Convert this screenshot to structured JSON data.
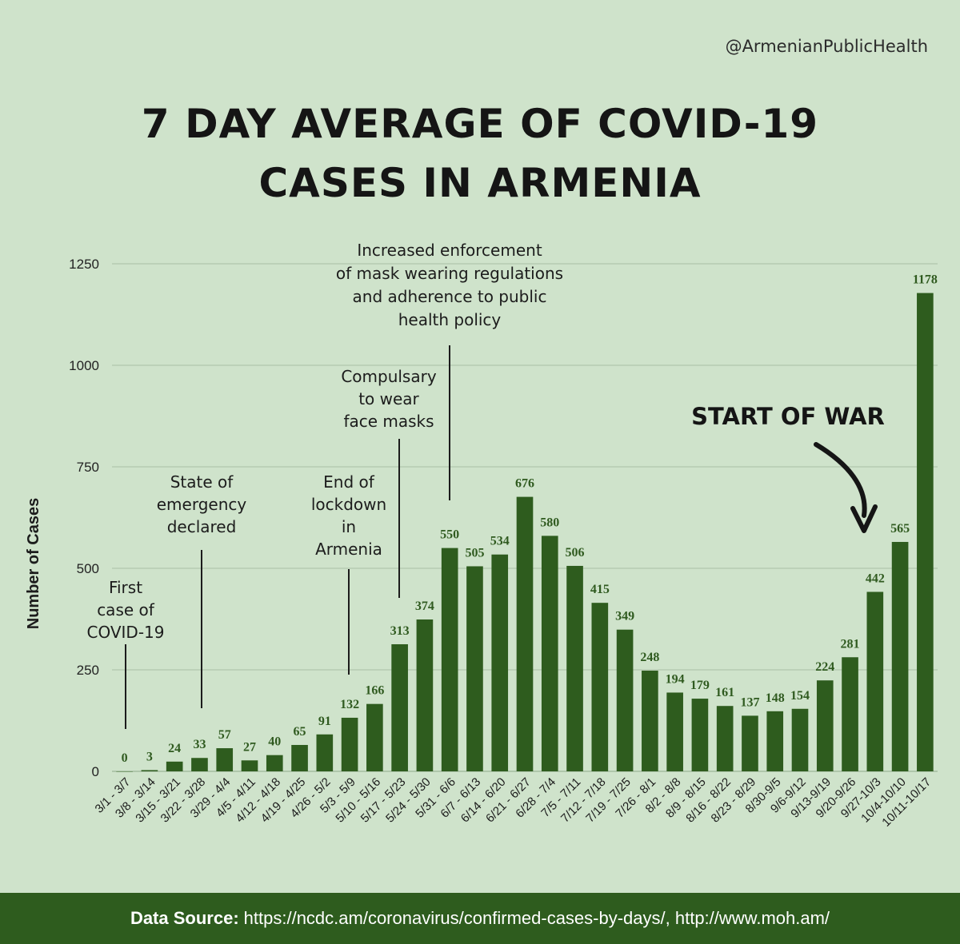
{
  "handle": "@ArmenianPublicHealth",
  "title_lines": [
    "7 DAY AVERAGE OF COVID-19",
    "CASES IN ARMENIA"
  ],
  "footer": {
    "label": "Data Source:",
    "text": "https://ncdc.am/coronavirus/confirmed-cases-by-days/, http://www.moh.am/"
  },
  "colors": {
    "background": "#cfe3cb",
    "bar": "#2e5c1e",
    "label": "#2f5a1f",
    "footer": "#2e5c1e"
  },
  "chart_data": {
    "type": "bar",
    "ylabel": "Number of Cases",
    "xlabel": "",
    "ylim": [
      0,
      1250
    ],
    "yticks": [
      0,
      250,
      500,
      750,
      1000,
      1250
    ],
    "grid": true,
    "categories": [
      "3/1 - 3/7",
      "3/8 - 3/14",
      "3/15 - 3/21",
      "3/22 - 3/28",
      "3/29 - 4/4",
      "4/5 - 4/11",
      "4/12 - 4/18",
      "4/19 - 4/25",
      "4/26 - 5/2",
      "5/3 - 5/9",
      "5/10 - 5/16",
      "5/17 - 5/23",
      "5/24 - 5/30",
      "5/31 - 6/6",
      "6/7 - 6/13",
      "6/14 - 6/20",
      "6/21 - 6/27",
      "6/28 - 7/4",
      "7/5 - 7/11",
      "7/12 - 7/18",
      "7/19 - 7/25",
      "7/26 - 8/1",
      "8/2 - 8/8",
      "8/9 - 8/15",
      "8/16 - 8/22",
      "8/23 - 8/29",
      "8/30-9/5",
      "9/6-9/12",
      "9/13-9/19",
      "9/20-9/26",
      "9/27-10/3",
      "10/4-10/10",
      "10/11-10/17"
    ],
    "values": [
      0,
      3,
      24,
      33,
      57,
      27,
      40,
      65,
      91,
      132,
      166,
      313,
      374,
      550,
      505,
      534,
      676,
      580,
      506,
      415,
      349,
      248,
      194,
      179,
      161,
      137,
      148,
      154,
      224,
      281,
      442,
      565,
      1178
    ],
    "annotations": [
      {
        "category_index": 0,
        "lines": [
          "First",
          "case of",
          "COVID-19"
        ]
      },
      {
        "category_index": 3,
        "lines": [
          "State of",
          "emergency",
          "declared"
        ]
      },
      {
        "category_index": 9,
        "lines": [
          "End of",
          "lockdown",
          "in",
          "Armenia"
        ]
      },
      {
        "category_index": 11,
        "lines": [
          "Compulsary",
          "to wear",
          "face masks"
        ]
      },
      {
        "category_index": 13,
        "lines": [
          "Increased enforcement",
          "of mask wearing regulations",
          "and adherence to public",
          "health policy"
        ]
      }
    ],
    "war_label": "START OF WAR"
  }
}
